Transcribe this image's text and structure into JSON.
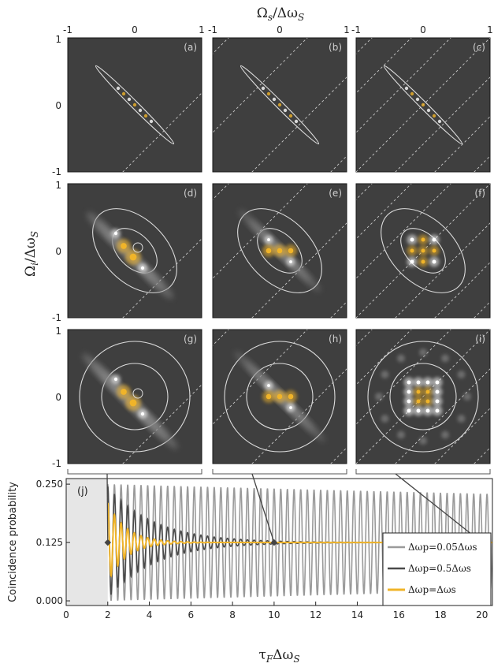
{
  "heatmaps": {
    "top_axis_label": "Ωs/ΔωS",
    "left_axis_label": "Ωi/ΔωS",
    "top_ticks": [
      [
        "-1",
        "0",
        "1"
      ],
      [
        "-1",
        "0",
        "1"
      ],
      [
        "-1",
        "0",
        "1"
      ]
    ],
    "left_ticks": [
      [
        "1",
        "0",
        "-1"
      ],
      [
        "1",
        "0",
        "-1"
      ],
      [
        "1",
        "0",
        "-1"
      ]
    ],
    "panels": [
      {
        "label": "(a)",
        "row": 0,
        "col": 0
      },
      {
        "label": "(b)",
        "row": 0,
        "col": 1
      },
      {
        "label": "(c)",
        "row": 0,
        "col": 2
      },
      {
        "label": "(d)",
        "row": 1,
        "col": 0
      },
      {
        "label": "(e)",
        "row": 1,
        "col": 1
      },
      {
        "label": "(f)",
        "row": 1,
        "col": 2
      },
      {
        "label": "(g)",
        "row": 2,
        "col": 0
      },
      {
        "label": "(h)",
        "row": 2,
        "col": 1
      },
      {
        "label": "(i)",
        "row": 2,
        "col": 2
      }
    ],
    "colors": {
      "background": "#3f3f3f",
      "contour": "#dcdcdc",
      "hot": "#f0b429",
      "bright": "#ffffff"
    }
  },
  "chart_data": {
    "type": "line",
    "panel_label": "(j)",
    "xlabel": "τFΔωS",
    "ylabel": "Coincidence probability",
    "xlim": [
      0,
      20.5
    ],
    "ylim": [
      -0.01,
      0.262
    ],
    "x_ticks": [
      "0",
      "2",
      "4",
      "6",
      "8",
      "10",
      "12",
      "14",
      "16",
      "18",
      "20"
    ],
    "y_ticks": [
      "0.000",
      "0.125",
      "0.250"
    ],
    "series": [
      {
        "name": "Δωp=0.05Δωs",
        "color": "#9a9a9a",
        "amplitude": 0.125,
        "decay": 0.01
      },
      {
        "name": "Δωp=0.5Δωs",
        "color": "#4a4a4a",
        "amplitude": 0.12,
        "decay": 0.45
      },
      {
        "name": "Δωp=Δωs",
        "color": "#f0b429",
        "amplitude": 0.085,
        "decay": 1.1
      }
    ],
    "oscillation_period": 0.32,
    "baseline": 0.125,
    "markers": [
      2,
      10,
      20
    ],
    "shaded_region": [
      0,
      2
    ]
  }
}
